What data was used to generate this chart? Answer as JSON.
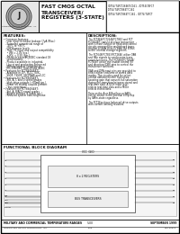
{
  "title_line1": "FAST CMOS OCTAL",
  "title_line2": "TRANSCEIVER/",
  "title_line3": "REGISTERS (3-STATE)",
  "pn1": "IDT54/74FCT2646T/C161 - IDT54/74FCT",
  "pn2": "IDT54/74FCT864T/C161",
  "pn3": "IDT54/74FCT864T/C161 - IDT74/74FCT",
  "features_title": "FEATURES:",
  "desc_title": "DESCRIPTION:",
  "block_title": "FUNCTIONAL BLOCK DIAGRAM",
  "footer_left": "MILITARY AND COMMERCIAL TEMPERATURE RANGES",
  "footer_center": "5.00",
  "footer_right": "SEPTEMBER 1999",
  "footer_company": "INTEGRATED DEVICE TECHNOLOGY, INC.",
  "footer_ds": "DS6-20011",
  "bg": "#ffffff",
  "border": "#000000",
  "gray_light": "#e8e8e8",
  "gray_mid": "#cccccc",
  "gray_dark": "#888888",
  "text": "#111111"
}
